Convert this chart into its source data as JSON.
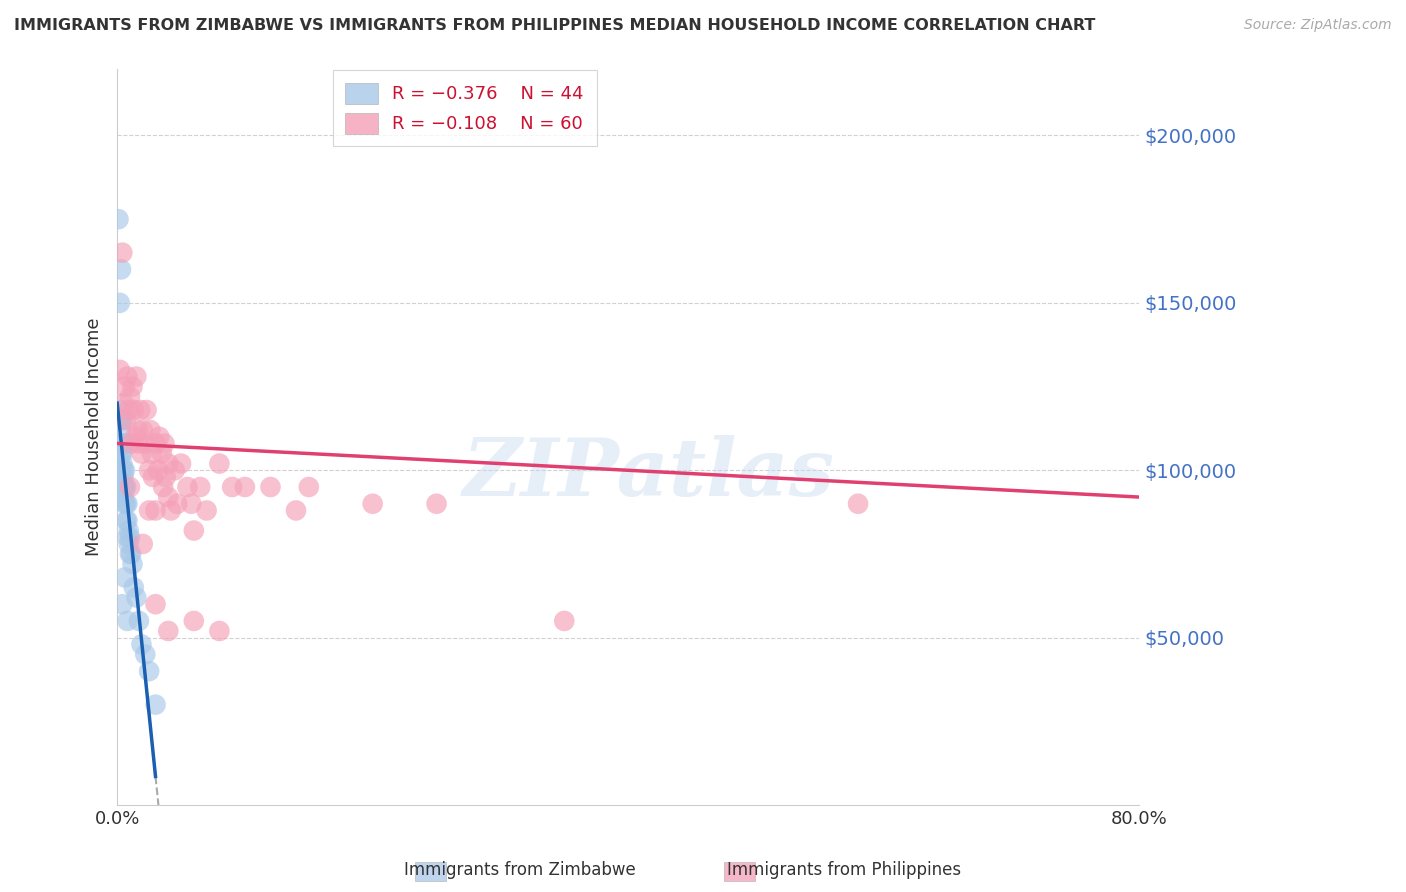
{
  "title": "IMMIGRANTS FROM ZIMBABWE VS IMMIGRANTS FROM PHILIPPINES MEDIAN HOUSEHOLD INCOME CORRELATION CHART",
  "source": "Source: ZipAtlas.com",
  "ylabel": "Median Household Income",
  "legend1_r": "R = -0.376",
  "legend1_n": "N = 44",
  "legend2_r": "R = -0.108",
  "legend2_n": "N = 60",
  "legend1_label": "Immigrants from Zimbabwe",
  "legend2_label": "Immigrants from Philippines",
  "blue_color": "#a8c8e8",
  "pink_color": "#f4a0b8",
  "line_blue": "#1a5fb0",
  "line_pink": "#e04070",
  "watermark": "ZIPatlas",
  "blue_scatter_x": [
    0.001,
    0.002,
    0.002,
    0.002,
    0.003,
    0.003,
    0.003,
    0.003,
    0.003,
    0.004,
    0.004,
    0.004,
    0.004,
    0.005,
    0.005,
    0.005,
    0.005,
    0.006,
    0.006,
    0.006,
    0.006,
    0.007,
    0.007,
    0.007,
    0.008,
    0.008,
    0.008,
    0.009,
    0.009,
    0.01,
    0.01,
    0.011,
    0.012,
    0.013,
    0.015,
    0.017,
    0.019,
    0.022,
    0.025,
    0.03,
    0.003,
    0.004,
    0.006,
    0.008
  ],
  "blue_scatter_y": [
    175000,
    150000,
    118000,
    115000,
    115000,
    112000,
    108000,
    105000,
    100000,
    115000,
    108000,
    105000,
    102000,
    100000,
    98000,
    95000,
    92000,
    108000,
    100000,
    95000,
    90000,
    95000,
    90000,
    85000,
    90000,
    85000,
    80000,
    82000,
    78000,
    80000,
    75000,
    75000,
    72000,
    65000,
    62000,
    55000,
    48000,
    45000,
    40000,
    30000,
    160000,
    60000,
    68000,
    55000
  ],
  "pink_scatter_x": [
    0.002,
    0.004,
    0.005,
    0.006,
    0.007,
    0.008,
    0.009,
    0.01,
    0.011,
    0.012,
    0.013,
    0.014,
    0.015,
    0.016,
    0.017,
    0.018,
    0.019,
    0.02,
    0.022,
    0.023,
    0.025,
    0.026,
    0.027,
    0.028,
    0.03,
    0.032,
    0.033,
    0.035,
    0.036,
    0.037,
    0.038,
    0.04,
    0.042,
    0.045,
    0.047,
    0.05,
    0.055,
    0.058,
    0.06,
    0.065,
    0.07,
    0.08,
    0.09,
    0.1,
    0.12,
    0.14,
    0.15,
    0.2,
    0.25,
    0.35,
    0.01,
    0.02,
    0.03,
    0.04,
    0.025,
    0.06,
    0.08,
    0.58,
    0.03,
    0.04
  ],
  "pink_scatter_y": [
    130000,
    165000,
    120000,
    125000,
    115000,
    128000,
    118000,
    122000,
    108000,
    125000,
    118000,
    110000,
    128000,
    112000,
    108000,
    118000,
    105000,
    112000,
    108000,
    118000,
    100000,
    112000,
    105000,
    98000,
    108000,
    100000,
    110000,
    105000,
    95000,
    108000,
    98000,
    102000,
    88000,
    100000,
    90000,
    102000,
    95000,
    90000,
    82000,
    95000,
    88000,
    102000,
    95000,
    95000,
    95000,
    88000,
    95000,
    90000,
    90000,
    55000,
    95000,
    78000,
    88000,
    92000,
    88000,
    55000,
    52000,
    90000,
    60000,
    52000
  ],
  "xlim_pct": [
    0,
    80
  ],
  "ylim": [
    0,
    220000
  ],
  "yticks": [
    0,
    50000,
    100000,
    150000,
    200000
  ],
  "ytick_labels": [
    "",
    "$50,000",
    "$100,000",
    "$150,000",
    "$200,000"
  ],
  "xtick_positions": [
    0,
    80
  ],
  "xtick_labels": [
    "0.0%",
    "80.0%"
  ],
  "background_color": "#ffffff",
  "grid_color": "#cccccc",
  "blue_line_x_end": 0.3,
  "blue_line_dash_end": 0.38,
  "pink_line_x_start": 0.002,
  "pink_line_x_end": 0.8
}
